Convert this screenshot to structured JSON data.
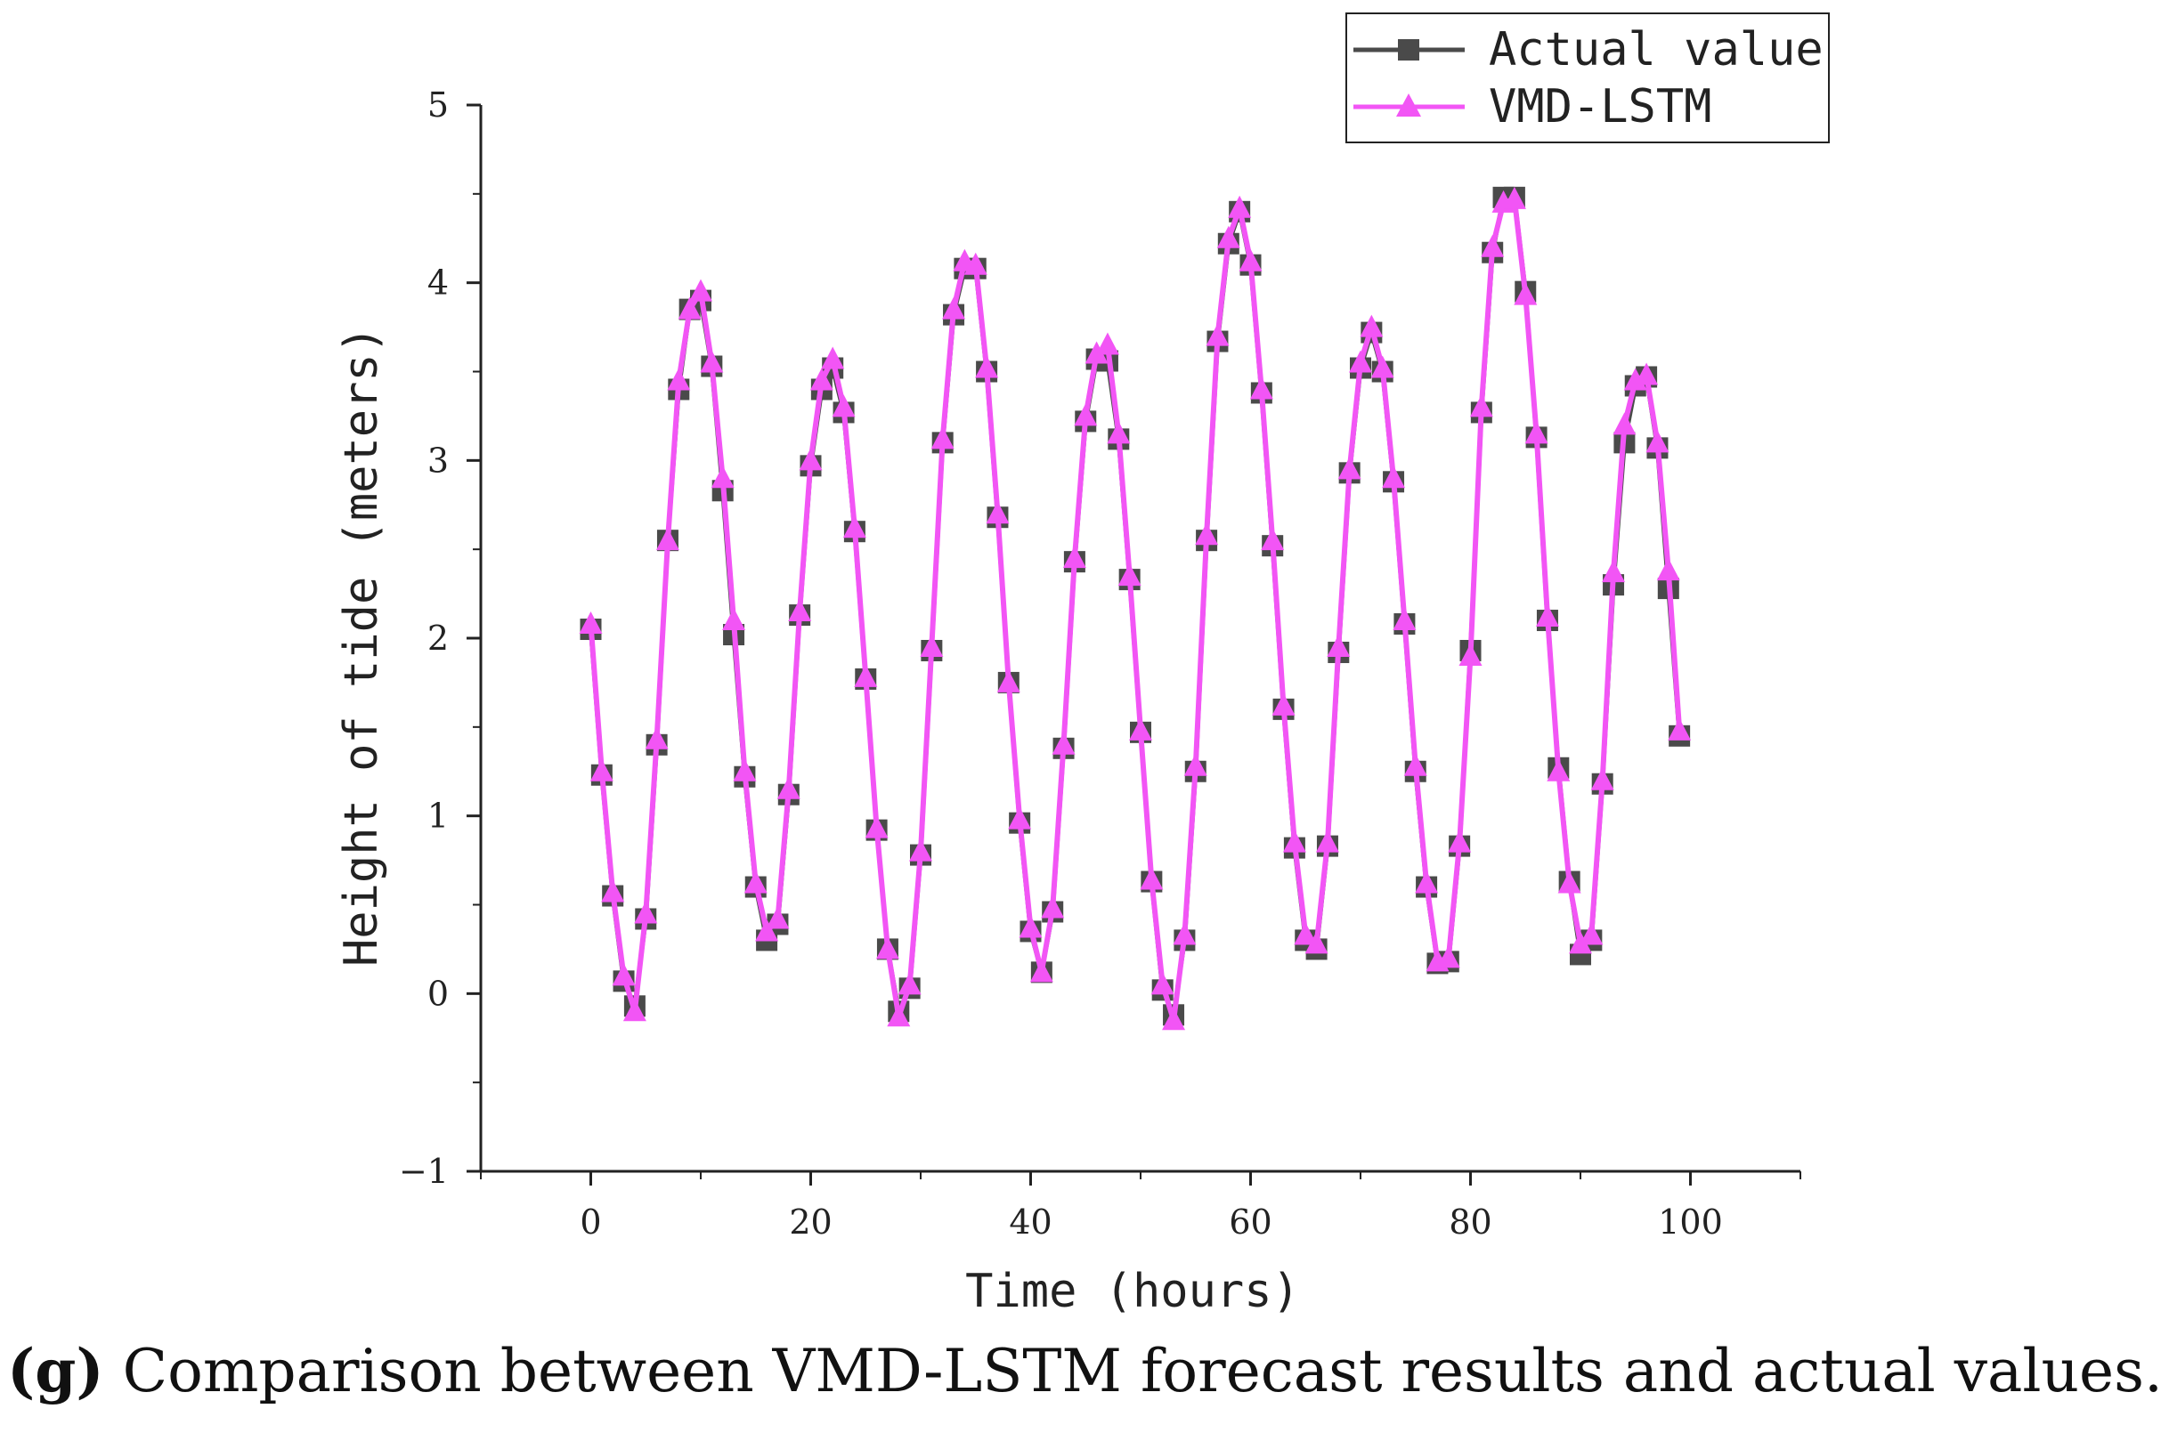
{
  "caption": {
    "tag": "(g)",
    "text": " Comparison between VMD-LSTM forecast results and actual values."
  },
  "chart_data": {
    "type": "line",
    "title": "",
    "xlabel": "Time (hours)",
    "ylabel": "Height of tide (meters)",
    "xlim": [
      -10,
      110
    ],
    "ylim": [
      -1,
      5
    ],
    "xticks": [
      0,
      20,
      40,
      60,
      80,
      100
    ],
    "yticks": [
      -1,
      0,
      1,
      2,
      3,
      4,
      5
    ],
    "xtick_labels": [
      "0",
      "20",
      "40",
      "60",
      "80",
      "100"
    ],
    "ytick_labels": [
      "−1",
      "0",
      "1",
      "2",
      "3",
      "4",
      "5"
    ],
    "legend_position": "top-right",
    "x": [
      0,
      1,
      2,
      3,
      4,
      5,
      6,
      7,
      8,
      9,
      10,
      11,
      12,
      13,
      14,
      15,
      16,
      17,
      18,
      19,
      20,
      21,
      22,
      23,
      24,
      25,
      26,
      27,
      28,
      29,
      30,
      31,
      32,
      33,
      34,
      35,
      36,
      37,
      38,
      39,
      40,
      41,
      42,
      43,
      44,
      45,
      46,
      47,
      48,
      49,
      50,
      51,
      52,
      53,
      54,
      55,
      56,
      57,
      58,
      59,
      60,
      61,
      62,
      63,
      64,
      65,
      66,
      67,
      68,
      69,
      70,
      71,
      72,
      73,
      74,
      75,
      76,
      77,
      78,
      79,
      80,
      81,
      82,
      83,
      84,
      85,
      86,
      87,
      88,
      89,
      90,
      91,
      92,
      93,
      94,
      95,
      96,
      97,
      98,
      99
    ],
    "series": [
      {
        "name": "Actual value",
        "color": "#4a4a4a",
        "marker": "square",
        "values": [
          2.05,
          1.23,
          0.55,
          0.07,
          -0.07,
          0.42,
          1.4,
          2.55,
          3.4,
          3.85,
          3.9,
          3.53,
          2.83,
          2.02,
          1.22,
          0.6,
          0.3,
          0.39,
          1.12,
          2.13,
          2.97,
          3.4,
          3.52,
          3.27,
          2.6,
          1.77,
          0.92,
          0.25,
          -0.1,
          0.03,
          0.78,
          1.93,
          3.1,
          3.82,
          4.08,
          4.08,
          3.5,
          2.68,
          1.75,
          0.96,
          0.35,
          0.12,
          0.46,
          1.38,
          2.43,
          3.22,
          3.57,
          3.56,
          3.12,
          2.33,
          1.47,
          0.63,
          0.02,
          -0.12,
          0.3,
          1.25,
          2.55,
          3.67,
          4.22,
          4.4,
          4.1,
          3.38,
          2.52,
          1.6,
          0.82,
          0.3,
          0.25,
          0.83,
          1.92,
          2.93,
          3.52,
          3.72,
          3.5,
          2.88,
          2.08,
          1.25,
          0.6,
          0.17,
          0.18,
          0.83,
          1.93,
          3.27,
          4.17,
          4.48,
          4.48,
          3.95,
          3.13,
          2.1,
          1.27,
          0.63,
          0.22,
          0.3,
          1.18,
          2.3,
          3.1,
          3.42,
          3.47,
          3.07,
          2.28,
          1.45
        ]
      },
      {
        "name": "VMD-LSTM",
        "color": "#f255f5",
        "marker": "triangle",
        "values": [
          2.08,
          1.25,
          0.57,
          0.1,
          -0.1,
          0.45,
          1.43,
          2.55,
          3.45,
          3.85,
          3.95,
          3.55,
          2.9,
          2.1,
          1.25,
          0.62,
          0.35,
          0.42,
          1.15,
          2.15,
          3.0,
          3.45,
          3.57,
          3.3,
          2.62,
          1.78,
          0.93,
          0.25,
          -0.13,
          0.05,
          0.8,
          1.95,
          3.12,
          3.85,
          4.12,
          4.1,
          3.52,
          2.7,
          1.75,
          0.98,
          0.37,
          0.12,
          0.48,
          1.4,
          2.45,
          3.25,
          3.6,
          3.65,
          3.15,
          2.35,
          1.48,
          0.64,
          0.05,
          -0.15,
          0.33,
          1.28,
          2.58,
          3.7,
          4.25,
          4.42,
          4.12,
          3.4,
          2.55,
          1.62,
          0.85,
          0.33,
          0.28,
          0.85,
          1.95,
          2.95,
          3.55,
          3.75,
          3.52,
          2.9,
          2.1,
          1.28,
          0.62,
          0.18,
          0.2,
          0.85,
          1.9,
          3.3,
          4.2,
          4.45,
          4.47,
          3.93,
          3.15,
          2.12,
          1.25,
          0.62,
          0.28,
          0.33,
          1.2,
          2.37,
          3.2,
          3.45,
          3.48,
          3.1,
          2.38,
          1.48
        ]
      }
    ]
  }
}
